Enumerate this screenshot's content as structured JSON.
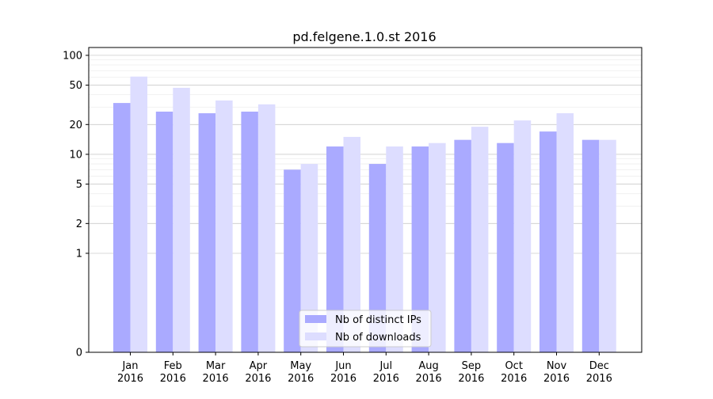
{
  "chart_data": {
    "type": "bar",
    "title": "pd.felgene.1.0.st 2016",
    "xlabel": "",
    "ylabel": "",
    "y_scale": "symlog",
    "ylim": [
      0,
      120
    ],
    "grid": true,
    "legend_position": "bottom-center",
    "categories": [
      [
        "Jan",
        "2016"
      ],
      [
        "Feb",
        "2016"
      ],
      [
        "Mar",
        "2016"
      ],
      [
        "Apr",
        "2016"
      ],
      [
        "May",
        "2016"
      ],
      [
        "Jun",
        "2016"
      ],
      [
        "Jul",
        "2016"
      ],
      [
        "Aug",
        "2016"
      ],
      [
        "Sep",
        "2016"
      ],
      [
        "Oct",
        "2016"
      ],
      [
        "Nov",
        "2016"
      ],
      [
        "Dec",
        "2016"
      ]
    ],
    "y_ticks": [
      0,
      1,
      2,
      5,
      10,
      20,
      50,
      100
    ],
    "series": [
      {
        "name": "Nb of distinct IPs",
        "color": "#aaaaff",
        "values": [
          33,
          27,
          26,
          27,
          7,
          12,
          8,
          12,
          14,
          13,
          17,
          14
        ]
      },
      {
        "name": "Nb of downloads",
        "color": "#ddddff",
        "values": [
          61,
          47,
          35,
          32,
          8,
          15,
          12,
          13,
          19,
          22,
          26,
          14
        ]
      }
    ]
  }
}
